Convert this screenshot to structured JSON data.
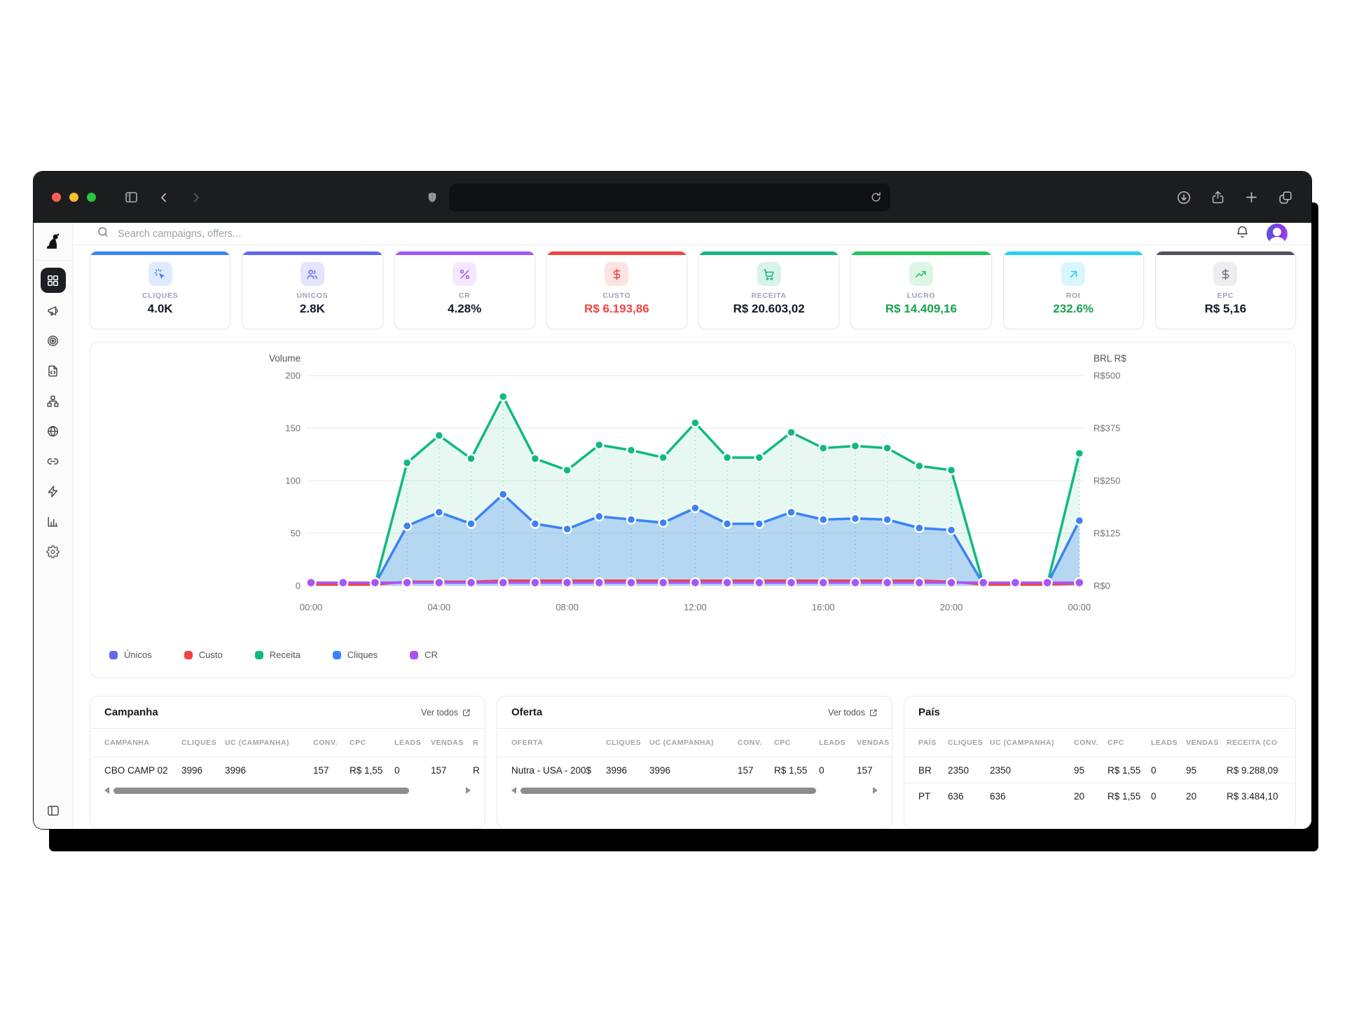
{
  "browser": {
    "url_value": ""
  },
  "topbar": {
    "search_placeholder": "Search campaigns, offers..."
  },
  "sidebar": {
    "items": [
      "dashboard",
      "campaigns",
      "targets",
      "offers",
      "flows",
      "domains",
      "links",
      "automation",
      "reports",
      "settings"
    ]
  },
  "kpis": [
    {
      "label": "CLIQUES",
      "value": "4.0K",
      "accent": "#3b82f6",
      "tint": "#dfeafe",
      "icon": "cursor-click",
      "value_color": "#111827"
    },
    {
      "label": "ÚNICOS",
      "value": "2.8K",
      "accent": "#6366f1",
      "tint": "#e4e5fc",
      "icon": "users",
      "value_color": "#111827"
    },
    {
      "label": "CR",
      "value": "4.28%",
      "accent": "#a855f7",
      "tint": "#f3e8fd",
      "icon": "percent",
      "value_color": "#111827"
    },
    {
      "label": "CUSTO",
      "value": "R$ 6.193,86",
      "accent": "#ef4444",
      "tint": "#fde3e3",
      "icon": "dollar",
      "value_color": "#ef4444"
    },
    {
      "label": "RECEITA",
      "value": "R$ 20.603,02",
      "accent": "#10b981",
      "tint": "#d8f3e9",
      "icon": "cart",
      "value_color": "#111827"
    },
    {
      "label": "LUCRO",
      "value": "R$ 14.409,16",
      "accent": "#22c55e",
      "tint": "#dcf5e4",
      "icon": "trending-up",
      "value_color": "#16a34a"
    },
    {
      "label": "ROI",
      "value": "232.6%",
      "accent": "#22d3ee",
      "tint": "#d8f6fc",
      "icon": "arrow-up-right",
      "value_color": "#16a34a"
    },
    {
      "label": "EPC",
      "value": "R$ 5,16",
      "accent": "#52525b",
      "tint": "#ededef",
      "icon": "dollar",
      "value_color": "#111827"
    }
  ],
  "chart_data": {
    "type": "area",
    "left_axis": {
      "label": "Volume",
      "ticks": [
        0,
        50,
        100,
        150,
        200
      ],
      "range": [
        0,
        200
      ]
    },
    "right_axis": {
      "label": "BRL R$",
      "ticks": [
        "R$0",
        "R$125",
        "R$250",
        "R$375",
        "R$500"
      ]
    },
    "x_labels": [
      "00:00",
      "04:00",
      "08:00",
      "12:00",
      "16:00",
      "20:00",
      "00:00"
    ],
    "x_hours": [
      0,
      1,
      2,
      3,
      4,
      5,
      6,
      7,
      8,
      9,
      10,
      11,
      12,
      13,
      14,
      15,
      16,
      17,
      18,
      19,
      20,
      21,
      22,
      23,
      24
    ],
    "series": [
      {
        "name": "Únicos",
        "color": "#6366f1",
        "values": [
          1.5,
          1.5,
          1.5,
          57,
          70,
          59,
          87,
          59,
          54,
          66,
          63,
          60,
          74,
          59,
          59,
          70,
          63,
          64,
          63,
          55,
          53,
          1.5,
          1.5,
          1.5,
          62
        ]
      },
      {
        "name": "Custo",
        "color": "#ef4444",
        "values": [
          1,
          1,
          1,
          4,
          4,
          4,
          5,
          5,
          5,
          5,
          5,
          5,
          5,
          5,
          5,
          5,
          5,
          5,
          5,
          5,
          4,
          1,
          1,
          1,
          2
        ]
      },
      {
        "name": "Receita",
        "color": "#10b981",
        "values": [
          1.5,
          1.5,
          1.5,
          117,
          143,
          121,
          180,
          121,
          110,
          134,
          129,
          122,
          155,
          122,
          122,
          146,
          131,
          133,
          131,
          114,
          110,
          1.5,
          1.5,
          1.5,
          126
        ]
      },
      {
        "name": "Cliques",
        "color": "#3b82f6",
        "values": [
          1.5,
          1.5,
          1.5,
          57,
          70,
          59,
          87,
          59,
          54,
          66,
          63,
          60,
          74,
          59,
          59,
          70,
          63,
          64,
          63,
          55,
          53,
          1.5,
          1.5,
          1.5,
          62
        ]
      },
      {
        "name": "CR",
        "color": "#a855f7",
        "values": [
          3,
          3,
          3,
          3,
          3,
          3,
          3,
          3,
          3,
          3,
          3,
          3,
          3,
          3,
          3,
          3,
          3,
          3,
          3,
          3,
          3,
          3,
          3,
          3,
          3
        ]
      }
    ],
    "legend": [
      "Únicos",
      "Custo",
      "Receita",
      "Cliques",
      "CR"
    ]
  },
  "tables": [
    {
      "title": "Campanha",
      "link": "Ver todos",
      "has_scrollbar": true,
      "columns": [
        "CAMPANHA",
        "CLIQUES",
        "UC (CAMPANHA)",
        "CONV.",
        "CPC",
        "LEADS",
        "VENDAS",
        "R"
      ],
      "rows": [
        [
          "CBO CAMP 02",
          "3996",
          "3996",
          "157",
          "R$ 1,55",
          "0",
          "157",
          "R"
        ]
      ]
    },
    {
      "title": "Oferta",
      "link": "Ver todos",
      "has_scrollbar": true,
      "columns": [
        "OFERTA",
        "CLIQUES",
        "UC (CAMPANHA)",
        "CONV.",
        "CPC",
        "LEADS",
        "VENDAS"
      ],
      "rows": [
        [
          "Nutra - USA - 200$",
          "3996",
          "3996",
          "157",
          "R$ 1,55",
          "0",
          "157"
        ]
      ]
    },
    {
      "title": "País",
      "link": "",
      "has_scrollbar": false,
      "columns": [
        "PAÍS",
        "CLIQUES",
        "UC (CAMPANHA)",
        "CONV.",
        "CPC",
        "LEADS",
        "VENDAS",
        "RECEITA (CO"
      ],
      "rows": [
        [
          "BR",
          "2350",
          "2350",
          "95",
          "R$ 1,55",
          "0",
          "95",
          "R$ 9.288,09"
        ],
        [
          "PT",
          "636",
          "636",
          "20",
          "R$ 1,55",
          "0",
          "20",
          "R$ 3.484,10"
        ]
      ]
    }
  ]
}
